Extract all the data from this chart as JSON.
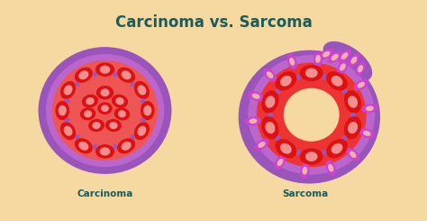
{
  "title": "Carcinoma vs. Sarcoma",
  "title_color": "#1a5c5c",
  "background_color": "#f5d9a0",
  "label_left": "Carcinoma",
  "label_right": "Sarcoma",
  "label_color": "#1a5c5c",
  "colors": {
    "purple_outer": "#9955bb",
    "purple_mid": "#bb66cc",
    "purple_light": "#cc88dd",
    "magenta": "#cc44cc",
    "red_cells": "#dd1111",
    "red_mid": "#ee3333",
    "red_light": "#ee5555",
    "pink_nucleus": "#f09090",
    "pink_light": "#f0b0b0",
    "cream": "#f5d9a0",
    "sep_color": "#aa44aa"
  }
}
